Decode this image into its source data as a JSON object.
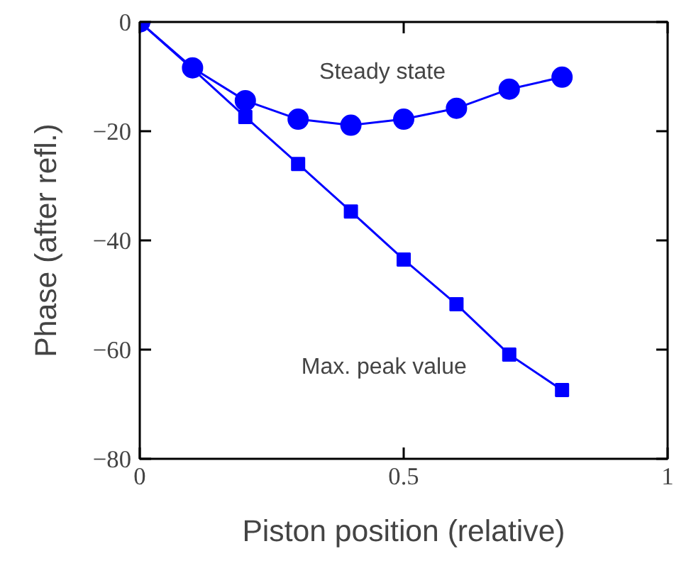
{
  "chart_data": {
    "type": "line",
    "xlabel": "Piston position (relative)",
    "ylabel": "Phase (after refl.)",
    "x": [
      0,
      0.1,
      0.2,
      0.3,
      0.4,
      0.5,
      0.6,
      0.7,
      0.8
    ],
    "series": [
      {
        "name": "Steady state",
        "color": "#0000ff",
        "marker": "circle",
        "values": [
          0,
          -8.4,
          -14.4,
          -17.8,
          -18.9,
          -17.8,
          -15.8,
          -12.3,
          -10.1
        ]
      },
      {
        "name": "Max. peak value",
        "color": "#0000ff",
        "marker": "square",
        "values": [
          0,
          -8.6,
          -17.4,
          -26.0,
          -34.7,
          -43.5,
          -51.7,
          -60.9,
          -67.4
        ]
      }
    ],
    "xlim": [
      0,
      1
    ],
    "ylim": [
      -80,
      0
    ],
    "xticks": [
      0,
      0.5,
      1
    ],
    "yticks": [
      0,
      {
        "value": -20,
        "label": "−20"
      },
      {
        "value": -40,
        "label": "−40"
      },
      {
        "value": -60,
        "label": "−60"
      },
      {
        "value": -80,
        "label": "−80"
      }
    ],
    "grid": false,
    "line_style": "solid"
  }
}
